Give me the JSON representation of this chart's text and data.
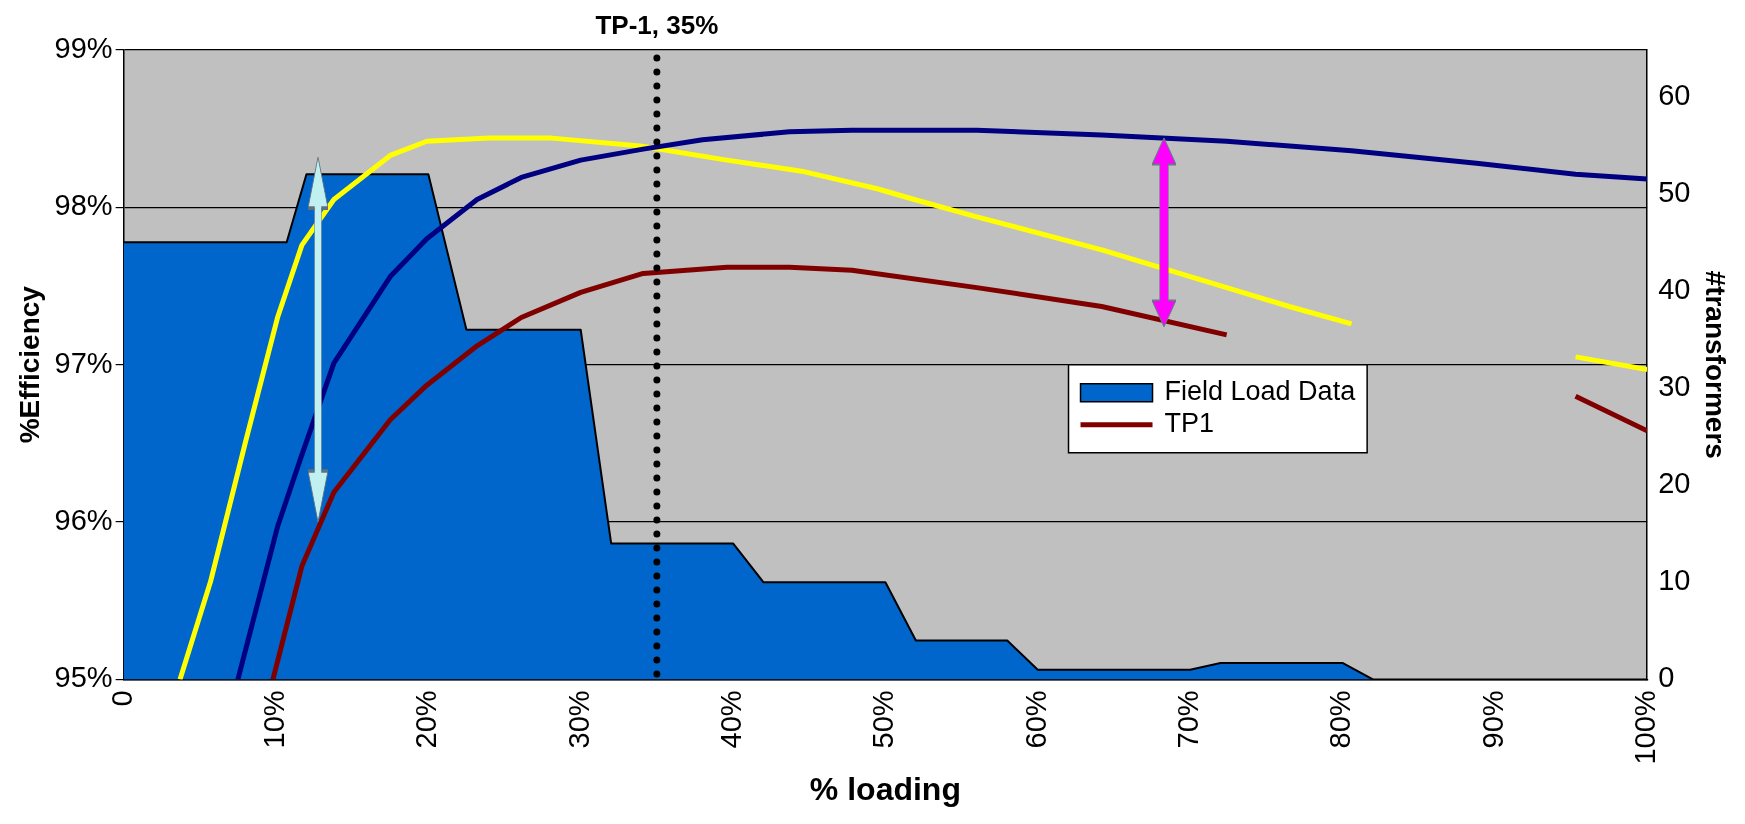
{
  "chart_data": {
    "type": "line",
    "xlabel": "% loading",
    "ylabel": "%Efficiency",
    "y2label": "#transformers",
    "xlim": [
      0,
      100
    ],
    "xticks": [
      0,
      {
        "value": 10,
        "label": "10%"
      },
      {
        "value": 20,
        "label": "20%"
      },
      {
        "value": 30,
        "label": "30%"
      },
      {
        "value": 40,
        "label": "40%"
      },
      {
        "value": 50,
        "label": "50%"
      },
      {
        "value": 60,
        "label": "60%"
      },
      {
        "value": 70,
        "label": "70%"
      },
      {
        "value": 80,
        "label": "80%"
      },
      {
        "value": 90,
        "label": "90%"
      },
      {
        "value": 100,
        "label": "100%"
      }
    ],
    "ylim": [
      95,
      99
    ],
    "yticks": [
      {
        "value": 95,
        "label": "95%"
      },
      {
        "value": 96,
        "label": "96%"
      },
      {
        "value": 97,
        "label": "97%"
      },
      {
        "value": 98,
        "label": "98%"
      },
      {
        "value": 99,
        "label": "99%"
      }
    ],
    "y2lim": [
      0,
      64.8
    ],
    "y2ticks": [
      0,
      10,
      20,
      30,
      40,
      50,
      60
    ],
    "grid": "y",
    "legend": "right",
    "marker": "none",
    "ref_lines": [
      {
        "axis": "x",
        "value": 35,
        "label": "TP-1, 35%",
        "line_style": "dotted",
        "color": "#000000"
      }
    ],
    "series": [
      {
        "name": "Field Load Data",
        "type": "area",
        "axis": "y2",
        "color": "#0066cc",
        "x": [
          0,
          10.7,
          12,
          20,
          22.5,
          30,
          32,
          40,
          42,
          50,
          52,
          58,
          60,
          70,
          72,
          80,
          82,
          100
        ],
        "values": [
          45,
          45,
          52,
          52,
          36,
          36,
          14,
          14,
          10,
          10,
          4,
          4,
          1,
          1,
          1.7,
          1.7,
          0,
          0
        ]
      },
      {
        "color": "#000080",
        "x": [
          7.5,
          10.1,
          11.6,
          13.8,
          17.5,
          19.9,
          23.2,
          26.1,
          30,
          34.1,
          38,
          43.7,
          47.8,
          56,
          64.2,
          72.4,
          80.6,
          88.8,
          95.3,
          100
        ],
        "values": [
          95,
          95.97,
          96.4,
          97.01,
          97.56,
          97.8,
          98.05,
          98.19,
          98.3,
          98.37,
          98.43,
          98.48,
          98.49,
          98.49,
          98.46,
          98.42,
          98.36,
          98.28,
          98.21,
          98.18
        ]
      },
      {
        "name": "TP1",
        "color": "#800000",
        "x": [
          9.8,
          11.7,
          13.8,
          17.5,
          19.9,
          23.2,
          26.1,
          30,
          34.1,
          39.6,
          43.7,
          47.8,
          56,
          64.2,
          72.4,
          85,
          95.3,
          100
        ],
        "values": [
          95,
          95.72,
          96.19,
          96.65,
          96.87,
          97.12,
          97.3,
          97.46,
          97.58,
          97.62,
          97.62,
          97.6,
          97.49,
          97.37,
          97.19,
          null,
          96.8,
          96.58
        ]
      },
      {
        "color": "#ffff00",
        "x": [
          3.7,
          5.7,
          8,
          10.1,
          11.7,
          13.8,
          17.5,
          19.9,
          24,
          28.1,
          33.9,
          39.6,
          44.5,
          49.4,
          51.9,
          56,
          64.2,
          72.4,
          76.5,
          80.6,
          88,
          95.3,
          100
        ],
        "values": [
          95,
          95.62,
          96.51,
          97.3,
          97.76,
          98.05,
          98.33,
          98.42,
          98.44,
          98.44,
          98.39,
          98.3,
          98.23,
          98.12,
          98.05,
          97.94,
          97.73,
          97.49,
          97.37,
          97.26,
          null,
          97.05,
          96.97
        ]
      }
    ]
  }
}
